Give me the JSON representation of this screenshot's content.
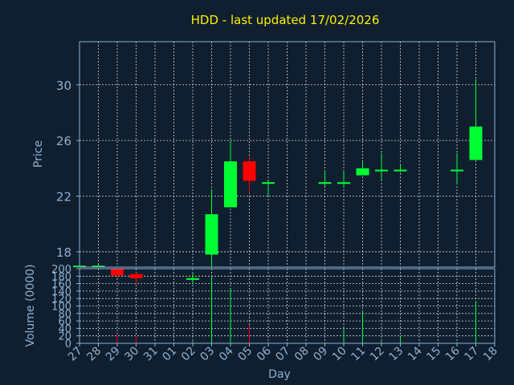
{
  "colors": {
    "background": "#0f1f30",
    "axis": "#8fb0d0",
    "title": "#ffee00",
    "label": "#8fb0d0",
    "grid": "#cfd8e0",
    "up": "#00ff33",
    "down": "#ff0000"
  },
  "chart_data": {
    "type": "candlestick",
    "title": "HDD - last updated 17/02/2026",
    "xlabel": "Day",
    "ylabel": "Price",
    "volume_ylabel": "Volume (0000)",
    "grid": true,
    "x_ticks": [
      "27",
      "28",
      "29",
      "30",
      "31",
      "01",
      "02",
      "03",
      "04",
      "05",
      "06",
      "07",
      "08",
      "09",
      "10",
      "11",
      "12",
      "13",
      "14",
      "15",
      "16",
      "17",
      "18"
    ],
    "price_ticks": [
      18,
      22,
      26,
      30
    ],
    "price_range": [
      16.9,
      33.1
    ],
    "volume_ticks": [
      0,
      20,
      40,
      60,
      80,
      100,
      120,
      140,
      160,
      180,
      200
    ],
    "volume_range": [
      0,
      200
    ],
    "candles": [
      {
        "x": "27",
        "open": 17.0,
        "high": 17.0,
        "low": 17.0,
        "close": 17.0,
        "volume": 2
      },
      {
        "x": "28",
        "open": 17.0,
        "high": 17.1,
        "low": 16.9,
        "close": 17.0,
        "volume": 2
      },
      {
        "x": "29",
        "open": 16.8,
        "high": 16.8,
        "low": 16.1,
        "close": 16.3,
        "volume": 25
      },
      {
        "x": "30",
        "open": 16.4,
        "high": 16.5,
        "low": 15.6,
        "close": 16.1,
        "volume": 20
      },
      {
        "x": "02",
        "open": 16.0,
        "high": 16.5,
        "low": 15.7,
        "close": 16.1,
        "volume": 5
      },
      {
        "x": "03",
        "open": 17.8,
        "high": 22.5,
        "low": 16.9,
        "close": 20.7,
        "volume": 180
      },
      {
        "x": "04",
        "open": 21.2,
        "high": 26.0,
        "low": 21.2,
        "close": 24.5,
        "volume": 145
      },
      {
        "x": "05",
        "open": 24.5,
        "high": 24.9,
        "low": 22.2,
        "close": 23.1,
        "volume": 50
      },
      {
        "x": "06",
        "open": 23.0,
        "high": 23.1,
        "low": 22.0,
        "close": 23.0,
        "volume": 3
      },
      {
        "x": "09",
        "open": 22.9,
        "high": 23.8,
        "low": 22.7,
        "close": 23.0,
        "volume": 3
      },
      {
        "x": "10",
        "open": 22.9,
        "high": 23.8,
        "low": 22.6,
        "close": 23.0,
        "volume": 38
      },
      {
        "x": "11",
        "open": 23.5,
        "high": 24.5,
        "low": 23.5,
        "close": 24.0,
        "volume": 88
      },
      {
        "x": "12",
        "open": 23.9,
        "high": 25.1,
        "low": 23.2,
        "close": 23.9,
        "volume": 5
      },
      {
        "x": "13",
        "open": 23.8,
        "high": 24.3,
        "low": 23.7,
        "close": 23.9,
        "volume": 18
      },
      {
        "x": "16",
        "open": 23.9,
        "high": 25.1,
        "low": 22.9,
        "close": 23.9,
        "volume": 3
      },
      {
        "x": "17",
        "open": 24.6,
        "high": 30.4,
        "low": 24.6,
        "close": 27.0,
        "volume": 112
      }
    ]
  }
}
